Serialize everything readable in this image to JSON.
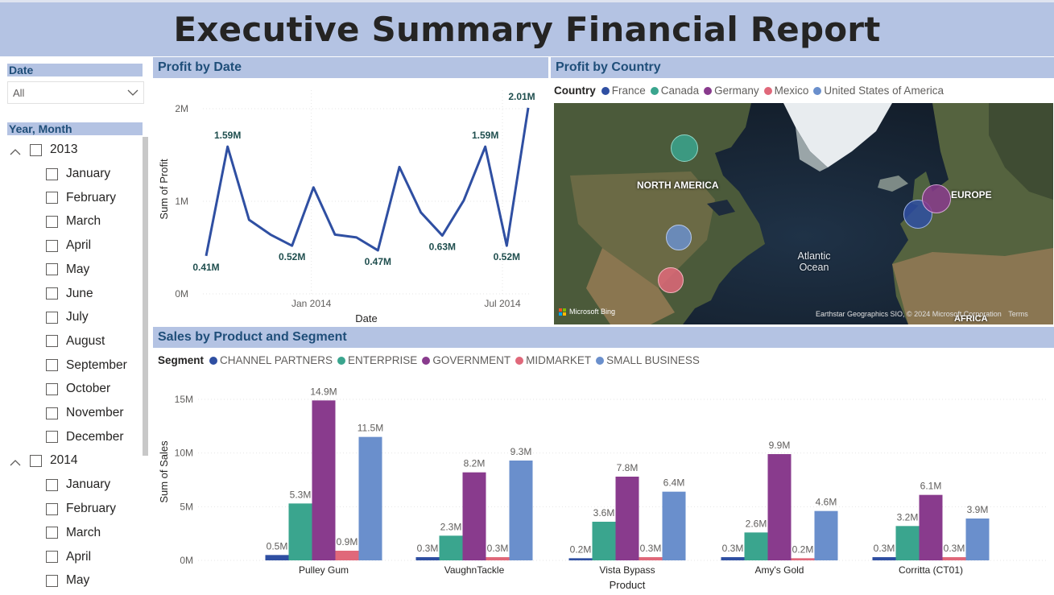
{
  "header": {
    "title": "Executive Summary Financial Report"
  },
  "slicers": {
    "date": {
      "title": "Date",
      "selected": "All"
    },
    "year_month": {
      "title": "Year, Month",
      "groups": [
        {
          "year": "2013",
          "months": [
            "January",
            "February",
            "March",
            "April",
            "May",
            "June",
            "July",
            "August",
            "September",
            "October",
            "November",
            "December"
          ]
        },
        {
          "year": "2014",
          "months": [
            "January",
            "February",
            "March",
            "April",
            "May"
          ]
        }
      ]
    }
  },
  "colors": {
    "header_bg": "#b4c3e3",
    "line": "#2f4fa2",
    "channel_partners": "#2f4fa2",
    "enterprise": "#3aa58e",
    "government": "#893b8d",
    "midmarket": "#e0687a",
    "small_business": "#6a8fcc"
  },
  "charts": {
    "profit_by_date": {
      "title": "Profit by Date",
      "chart_data": {
        "type": "line",
        "xlabel": "Date",
        "ylabel": "Sum of Profit",
        "x_ticks": [
          "Jan 2014",
          "Jul 2014"
        ],
        "y_ticks": [
          "0M",
          "1M",
          "2M"
        ],
        "ylim": [
          0,
          2.2
        ],
        "grid": true,
        "series": [
          {
            "values": [
              0.41,
              1.59,
              0.8,
              0.64,
              0.52,
              1.15,
              0.64,
              0.61,
              0.47,
              1.37,
              0.88,
              0.63,
              1.01,
              1.59,
              0.52,
              2.01
            ]
          }
        ],
        "data_labels": [
          {
            "index": 0,
            "text": "0.41M"
          },
          {
            "index": 1,
            "text": "1.59M"
          },
          {
            "index": 4,
            "text": "0.52M"
          },
          {
            "index": 8,
            "text": "0.47M"
          },
          {
            "index": 11,
            "text": "0.63M"
          },
          {
            "index": 13,
            "text": "1.59M"
          },
          {
            "index": 14,
            "text": "0.52M"
          },
          {
            "index": 15,
            "text": "2.01M"
          }
        ]
      }
    },
    "profit_by_country": {
      "title": "Profit by Country",
      "legend_title": "Country",
      "legend": [
        {
          "name": "France",
          "color": "#2f4fa2"
        },
        {
          "name": "Canada",
          "color": "#3aa58e"
        },
        {
          "name": "Germany",
          "color": "#893b8d"
        },
        {
          "name": "Mexico",
          "color": "#e0687a"
        },
        {
          "name": "United States of America",
          "color": "#6a8fcc"
        }
      ],
      "map_labels": {
        "north_america": "NORTH AMERICA",
        "europe": "EUROPE",
        "ocean": "Atlantic Ocean",
        "africa": "AFRICA"
      },
      "attribution": "Earthstar Geographics SIO, © 2024 Microsoft Corporation",
      "terms": "Terms",
      "bing": "Microsoft Bing"
    },
    "sales_by_product_segment": {
      "title": "Sales by Product and Segment",
      "chart_data": {
        "type": "bar",
        "xlabel": "Product",
        "ylabel": "Sum of Sales",
        "legend_title": "Segment",
        "legend_position": "top-left",
        "categories": [
          "Pulley Gum",
          "VaughnTackle",
          "Vista Bypass",
          "Amy's Gold",
          "Corritta (CT01)"
        ],
        "y_ticks": [
          "0M",
          "5M",
          "10M",
          "15M"
        ],
        "ylim": [
          0,
          16.5
        ],
        "series": [
          {
            "name": "CHANNEL PARTNERS",
            "values": [
              0.5,
              0.3,
              0.2,
              0.3,
              0.3
            ],
            "labels": [
              "0.5M",
              "0.3M",
              "0.2M",
              "0.3M",
              "0.3M"
            ]
          },
          {
            "name": "ENTERPRISE",
            "values": [
              5.3,
              2.3,
              3.6,
              2.6,
              3.2
            ],
            "labels": [
              "5.3M",
              "2.3M",
              "3.6M",
              "2.6M",
              "3.2M"
            ]
          },
          {
            "name": "GOVERNMENT",
            "values": [
              14.9,
              8.2,
              7.8,
              9.9,
              6.1
            ],
            "labels": [
              "14.9M",
              "8.2M",
              "7.8M",
              "9.9M",
              "6.1M"
            ]
          },
          {
            "name": "MIDMARKET",
            "values": [
              0.9,
              0.3,
              0.3,
              0.2,
              0.3
            ],
            "labels": [
              "0.9M",
              "0.3M",
              "0.3M",
              "0.2M",
              "0.3M"
            ]
          },
          {
            "name": "SMALL BUSINESS",
            "values": [
              11.5,
              9.3,
              6.4,
              4.6,
              3.9
            ],
            "labels": [
              "11.5M",
              "9.3M",
              "6.4M",
              "4.6M",
              "3.9M"
            ]
          }
        ]
      }
    }
  }
}
